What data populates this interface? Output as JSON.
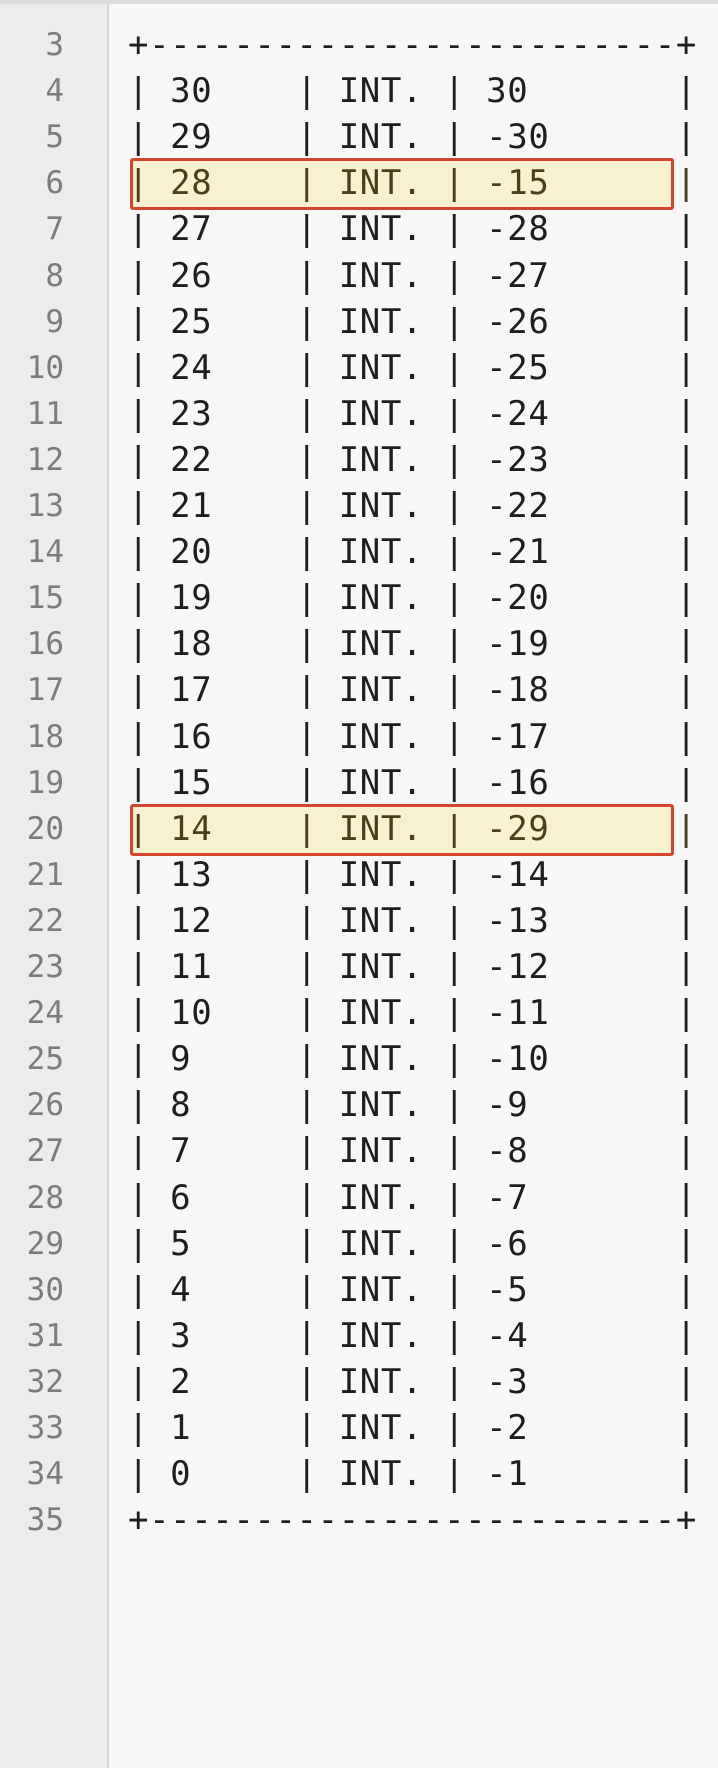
{
  "editor": {
    "lines": [
      {
        "num": "3",
        "text": "+-------------------------+",
        "highlighted": false
      },
      {
        "num": "4",
        "text": "| 30    | INT. | 30       |",
        "highlighted": false
      },
      {
        "num": "5",
        "text": "| 29    | INT. | -30      |",
        "highlighted": false
      },
      {
        "num": "6",
        "text": "| 28    | INT. | -15      |",
        "highlighted": true
      },
      {
        "num": "7",
        "text": "| 27    | INT. | -28      |",
        "highlighted": false
      },
      {
        "num": "8",
        "text": "| 26    | INT. | -27      |",
        "highlighted": false
      },
      {
        "num": "9",
        "text": "| 25    | INT. | -26      |",
        "highlighted": false
      },
      {
        "num": "10",
        "text": "| 24    | INT. | -25      |",
        "highlighted": false
      },
      {
        "num": "11",
        "text": "| 23    | INT. | -24      |",
        "highlighted": false
      },
      {
        "num": "12",
        "text": "| 22    | INT. | -23      |",
        "highlighted": false
      },
      {
        "num": "13",
        "text": "| 21    | INT. | -22      |",
        "highlighted": false
      },
      {
        "num": "14",
        "text": "| 20    | INT. | -21      |",
        "highlighted": false
      },
      {
        "num": "15",
        "text": "| 19    | INT. | -20      |",
        "highlighted": false
      },
      {
        "num": "16",
        "text": "| 18    | INT. | -19      |",
        "highlighted": false
      },
      {
        "num": "17",
        "text": "| 17    | INT. | -18      |",
        "highlighted": false
      },
      {
        "num": "18",
        "text": "| 16    | INT. | -17      |",
        "highlighted": false
      },
      {
        "num": "19",
        "text": "| 15    | INT. | -16      |",
        "highlighted": false
      },
      {
        "num": "20",
        "text": "| 14    | INT. | -29      |",
        "highlighted": true
      },
      {
        "num": "21",
        "text": "| 13    | INT. | -14      |",
        "highlighted": false
      },
      {
        "num": "22",
        "text": "| 12    | INT. | -13      |",
        "highlighted": false
      },
      {
        "num": "23",
        "text": "| 11    | INT. | -12      |",
        "highlighted": false
      },
      {
        "num": "24",
        "text": "| 10    | INT. | -11      |",
        "highlighted": false
      },
      {
        "num": "25",
        "text": "| 9     | INT. | -10      |",
        "highlighted": false
      },
      {
        "num": "26",
        "text": "| 8     | INT. | -9       |",
        "highlighted": false
      },
      {
        "num": "27",
        "text": "| 7     | INT. | -8       |",
        "highlighted": false
      },
      {
        "num": "28",
        "text": "| 6     | INT. | -7       |",
        "highlighted": false
      },
      {
        "num": "29",
        "text": "| 5     | INT. | -6       |",
        "highlighted": false
      },
      {
        "num": "30",
        "text": "| 4     | INT. | -5       |",
        "highlighted": false
      },
      {
        "num": "31",
        "text": "| 3     | INT. | -4       |",
        "highlighted": false
      },
      {
        "num": "32",
        "text": "| 2     | INT. | -3       |",
        "highlighted": false
      },
      {
        "num": "33",
        "text": "| 1     | INT. | -2       |",
        "highlighted": false
      },
      {
        "num": "34",
        "text": "| 0     | INT. | -1       |",
        "highlighted": false
      },
      {
        "num": "35",
        "text": "+-------------------------+",
        "highlighted": false
      }
    ],
    "highlight_color": "#f8f1d0",
    "highlight_border_color": "#d4452d"
  }
}
